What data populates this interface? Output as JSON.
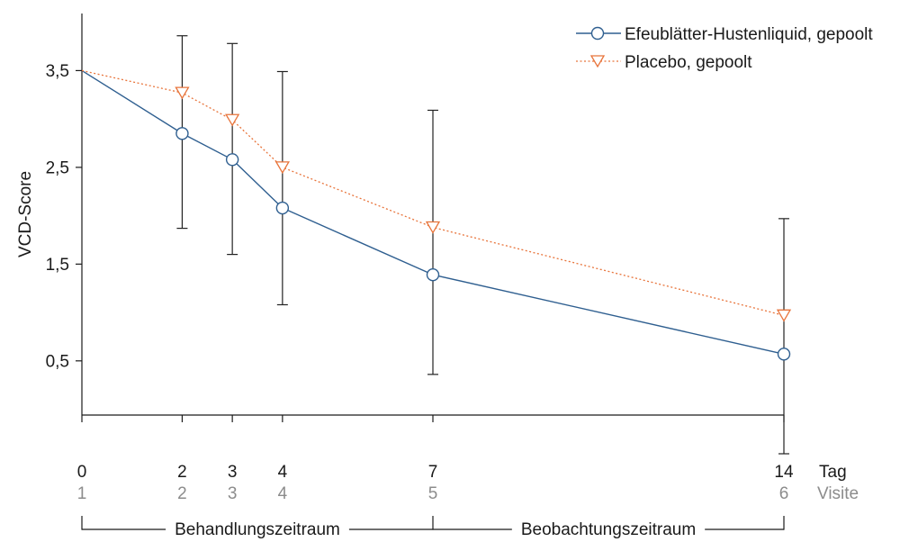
{
  "chart_data": {
    "type": "line",
    "xlabel": "Tag",
    "ylabel": "VCD-Score",
    "x": [
      0,
      2,
      3,
      4,
      7,
      14
    ],
    "x_tick_labels": [
      "0",
      "2",
      "3",
      "4",
      "7",
      "14"
    ],
    "secondary_xlabel": "Visite",
    "secondary_x_tick_labels": [
      "1",
      "2",
      "3",
      "4",
      "5",
      "6"
    ],
    "xlim": [
      0,
      14
    ],
    "ylim": [
      -0.06,
      4.09
    ],
    "y_ticks": [
      0.5,
      1.5,
      2.5,
      3.5
    ],
    "y_tick_labels": [
      "0,5",
      "1,5",
      "2,5",
      "3,5"
    ],
    "grid": false,
    "legend_position": "top-right",
    "series": [
      {
        "name": "Efeublätter-Hustenliquid, gepoolt",
        "color": "#2f5f90",
        "line_style": "solid",
        "marker": "circle",
        "first_point_marker": false,
        "values": [
          3.5,
          2.85,
          2.58,
          2.08,
          1.39,
          0.57
        ],
        "error_lower": [
          null,
          1.87,
          1.6,
          1.08,
          0.36,
          -0.46
        ]
      },
      {
        "name": "Placebo, gepoolt",
        "color": "#e8743b",
        "line_style": "dotted",
        "marker": "triangle-down",
        "first_point_marker": false,
        "values": [
          3.5,
          3.27,
          2.99,
          2.5,
          1.88,
          0.97
        ],
        "error_upper": [
          null,
          3.86,
          3.78,
          3.49,
          3.09,
          1.97
        ]
      }
    ],
    "periods": [
      {
        "label": "Behandlungszeitraum",
        "from": 0,
        "to": 7
      },
      {
        "label": "Beobachtungszeitraum",
        "from": 7,
        "to": 14
      }
    ],
    "axis_color": "#1a1a1a",
    "error_bar_color": "#222222",
    "secondary_label_color": "#8c8c8c"
  }
}
